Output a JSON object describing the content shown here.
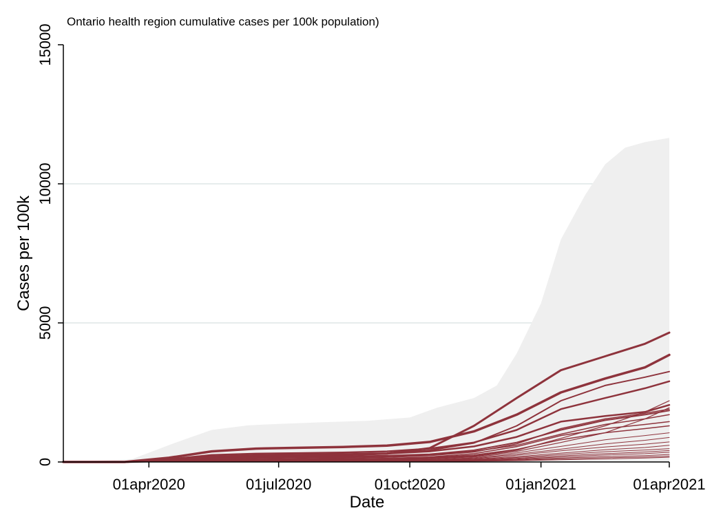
{
  "chart_data": {
    "type": "line",
    "title": "Ontario health region cumulative cases per 100k population)",
    "xlabel": "Date",
    "ylabel": "Cases per 100k",
    "ylim": [
      0,
      15000
    ],
    "xlim": [
      "2020-02-01",
      "2021-04-01"
    ],
    "x_ticks": [
      "2020-04-01",
      "2020-07-01",
      "2020-10-01",
      "2021-01-01",
      "2021-04-01"
    ],
    "x_tick_labels": [
      "01apr2020",
      "01jul2020",
      "01oct2020",
      "01jan2021",
      "01apr2021"
    ],
    "y_ticks": [
      0,
      5000,
      10000,
      15000
    ],
    "y_tick_labels": [
      "0",
      "5000",
      "10000",
      "15000"
    ],
    "grid": true,
    "colors": {
      "series": "#8e333c",
      "band": "#efefef",
      "grid": "#e6ecec"
    },
    "band": {
      "description_x": [
        "2020-02-01",
        "2020-03-20",
        "2020-04-20",
        "2020-05-15",
        "2020-06-10",
        "2020-07-01",
        "2020-08-01",
        "2020-09-01",
        "2020-10-01",
        "2020-10-20",
        "2020-11-15",
        "2020-12-01",
        "2020-12-15",
        "2021-01-01",
        "2021-01-15",
        "2021-02-01",
        "2021-02-15",
        "2021-03-01",
        "2021-03-15",
        "2021-04-01"
      ],
      "upper": [
        0,
        100,
        700,
        1150,
        1320,
        1370,
        1430,
        1480,
        1600,
        1950,
        2300,
        2750,
        3900,
        5700,
        8000,
        9600,
        10700,
        11300,
        11500,
        11650
      ],
      "lower": [
        0,
        0,
        0,
        0,
        0,
        0,
        0,
        0,
        0,
        0,
        0,
        0,
        0,
        0,
        0,
        0,
        0,
        0,
        0,
        0
      ]
    },
    "x": [
      "2020-02-01",
      "2020-03-15",
      "2020-04-15",
      "2020-05-15",
      "2020-06-15",
      "2020-07-15",
      "2020-08-15",
      "2020-09-15",
      "2020-10-15",
      "2020-11-15",
      "2020-12-15",
      "2021-01-15",
      "2021-02-15",
      "2021-03-15",
      "2021-04-01"
    ],
    "series": [
      {
        "width": 3.5,
        "values": [
          0,
          0,
          150,
          380,
          480,
          510,
          540,
          590,
          720,
          1100,
          1700,
          2500,
          3000,
          3400,
          3850
        ]
      },
      {
        "width": 3.0,
        "values": [
          0,
          0,
          50,
          150,
          200,
          220,
          250,
          300,
          500,
          1300,
          2300,
          3300,
          3800,
          4250,
          4650
        ]
      },
      {
        "width": 2.5,
        "values": [
          0,
          0,
          100,
          250,
          300,
          320,
          340,
          380,
          480,
          700,
          1150,
          1900,
          2300,
          2650,
          2900
        ]
      },
      {
        "width": 2.0,
        "values": [
          0,
          0,
          80,
          200,
          250,
          270,
          290,
          320,
          420,
          680,
          1300,
          2200,
          2750,
          3050,
          3250
        ]
      },
      {
        "width": 2.5,
        "values": [
          0,
          0,
          60,
          180,
          220,
          240,
          260,
          300,
          380,
          560,
          900,
          1450,
          1650,
          1800,
          2050
        ]
      },
      {
        "width": 2.0,
        "values": [
          0,
          0,
          40,
          120,
          160,
          180,
          200,
          230,
          280,
          420,
          700,
          1150,
          1500,
          1700,
          1850
        ]
      },
      {
        "width": 1.5,
        "values": [
          0,
          0,
          30,
          90,
          130,
          150,
          170,
          200,
          250,
          380,
          600,
          1000,
          1350,
          1550,
          1700
        ]
      },
      {
        "width": 1.5,
        "values": [
          0,
          0,
          20,
          70,
          100,
          120,
          140,
          170,
          230,
          360,
          650,
          1200,
          1550,
          1750,
          1900
        ]
      },
      {
        "width": 1.5,
        "values": [
          0,
          0,
          25,
          60,
          90,
          100,
          110,
          130,
          180,
          300,
          550,
          950,
          1200,
          1350,
          1450
        ]
      },
      {
        "width": 1.5,
        "values": [
          0,
          0,
          15,
          50,
          80,
          95,
          110,
          130,
          160,
          250,
          450,
          800,
          1050,
          1200,
          1300
        ]
      },
      {
        "width": 1.2,
        "values": [
          0,
          0,
          10,
          40,
          60,
          70,
          85,
          100,
          140,
          220,
          420,
          850,
          1300,
          1800,
          2200
        ]
      },
      {
        "width": 1.2,
        "values": [
          0,
          0,
          10,
          30,
          50,
          60,
          75,
          90,
          120,
          200,
          380,
          700,
          1050,
          1550,
          1950
        ]
      },
      {
        "width": 1.0,
        "values": [
          0,
          0,
          10,
          30,
          45,
          55,
          65,
          80,
          110,
          180,
          330,
          560,
          800,
          950,
          1050
        ]
      },
      {
        "width": 1.0,
        "values": [
          0,
          0,
          8,
          25,
          40,
          48,
          55,
          65,
          90,
          150,
          280,
          460,
          650,
          780,
          880
        ]
      },
      {
        "width": 1.0,
        "values": [
          0,
          0,
          6,
          20,
          35,
          42,
          50,
          60,
          80,
          130,
          240,
          400,
          540,
          640,
          720
        ]
      },
      {
        "width": 1.0,
        "values": [
          0,
          0,
          5,
          15,
          28,
          35,
          42,
          50,
          65,
          110,
          190,
          320,
          440,
          520,
          600
        ]
      },
      {
        "width": 1.0,
        "values": [
          0,
          0,
          5,
          15,
          25,
          30,
          36,
          42,
          55,
          90,
          160,
          270,
          370,
          430,
          480
        ]
      },
      {
        "width": 1.0,
        "values": [
          0,
          0,
          4,
          12,
          20,
          25,
          30,
          36,
          48,
          75,
          130,
          220,
          300,
          360,
          410
        ]
      },
      {
        "width": 1.0,
        "values": [
          0,
          0,
          3,
          10,
          16,
          20,
          24,
          30,
          40,
          62,
          110,
          180,
          250,
          300,
          350
        ]
      },
      {
        "width": 1.0,
        "values": [
          0,
          0,
          3,
          8,
          13,
          16,
          20,
          25,
          32,
          50,
          85,
          140,
          190,
          230,
          270
        ]
      },
      {
        "width": 1.0,
        "values": [
          0,
          0,
          2,
          6,
          10,
          12,
          15,
          18,
          24,
          38,
          65,
          110,
          150,
          180,
          210
        ]
      },
      {
        "width": 1.0,
        "values": [
          0,
          0,
          2,
          5,
          8,
          10,
          12,
          14,
          18,
          28,
          48,
          80,
          110,
          140,
          170
        ]
      }
    ]
  }
}
